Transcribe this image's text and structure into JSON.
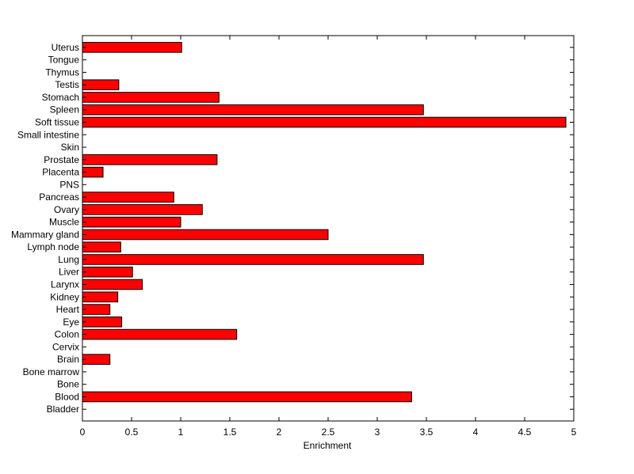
{
  "chart_data": {
    "type": "bar",
    "orientation": "horizontal",
    "xlabel": "Enrichment",
    "ylabel": "",
    "title": "",
    "xlim": [
      0,
      5
    ],
    "xticks": [
      "0",
      "0.5",
      "1",
      "1.5",
      "2",
      "2.5",
      "3",
      "3.5",
      "4",
      "4.5",
      "5"
    ],
    "grid": false,
    "bar_color": "#ff0000",
    "categories": [
      "Bladder",
      "Blood",
      "Bone",
      "Bone marrow",
      "Brain",
      "Cervix",
      "Colon",
      "Eye",
      "Heart",
      "Kidney",
      "Larynx",
      "Liver",
      "Lung",
      "Lymph node",
      "Mammary gland",
      "Muscle",
      "Ovary",
      "Pancreas",
      "PNS",
      "Placenta",
      "Prostate",
      "Skin",
      "Small intestine",
      "Soft tissue",
      "Spleen",
      "Stomach",
      "Testis",
      "Thymus",
      "Tongue",
      "Uterus"
    ],
    "values": [
      0,
      3.35,
      0,
      0,
      0.28,
      0,
      1.57,
      0.4,
      0.28,
      0.36,
      0.61,
      0.51,
      3.47,
      0.39,
      2.5,
      1.0,
      1.22,
      0.93,
      0,
      0.21,
      1.37,
      0,
      0,
      4.92,
      3.47,
      1.39,
      0.37,
      0,
      0,
      1.01
    ]
  }
}
